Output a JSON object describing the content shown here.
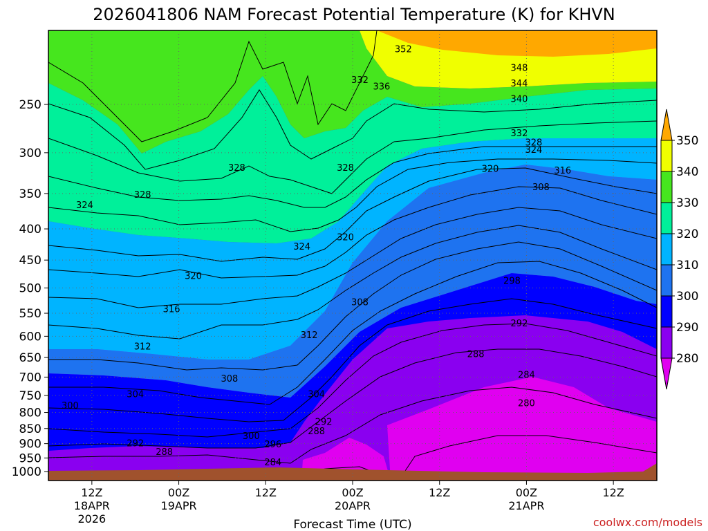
{
  "chart_data": {
    "type": "contour",
    "title": "2026041806 NAM Forecast Potential Temperature (K) for KHVN",
    "xlabel": "Forecast Time (UTC)",
    "ylabel": "",
    "watermark": "coolwx.com/models",
    "y_scale": "log-pressure",
    "y_ticks": [
      250,
      300,
      350,
      400,
      450,
      500,
      550,
      600,
      650,
      700,
      750,
      800,
      850,
      900,
      950,
      1000
    ],
    "ylim_hpa": [
      1000,
      200
    ],
    "x_range_hours": [
      0,
      84
    ],
    "x_ticks": [
      {
        "hour": 6,
        "label": "12Z",
        "line2": "18APR",
        "line3": "2026"
      },
      {
        "hour": 18,
        "label": "00Z",
        "line2": "19APR",
        "line3": ""
      },
      {
        "hour": 30,
        "label": "12Z",
        "line2": "",
        "line3": ""
      },
      {
        "hour": 42,
        "label": "00Z",
        "line2": "20APR",
        "line3": ""
      },
      {
        "hour": 54,
        "label": "12Z",
        "line2": "",
        "line3": ""
      },
      {
        "hour": 66,
        "label": "00Z",
        "line2": "21APR",
        "line3": ""
      },
      {
        "hour": 78,
        "label": "12Z",
        "line2": "",
        "line3": ""
      }
    ],
    "grid": true,
    "terrain_color": "#a0522d",
    "colorbar": {
      "ticks": [
        280,
        290,
        300,
        310,
        320,
        330,
        340,
        350
      ],
      "bands": [
        {
          "from": 280,
          "to": 290,
          "color": "#8a00f0"
        },
        {
          "from": 290,
          "to": 300,
          "color": "#0000ff"
        },
        {
          "from": 300,
          "to": 310,
          "color": "#1e73f0"
        },
        {
          "from": 310,
          "to": 320,
          "color": "#00b4ff"
        },
        {
          "from": 320,
          "to": 330,
          "color": "#00f09a"
        },
        {
          "from": 330,
          "to": 340,
          "color": "#46e61e"
        },
        {
          "from": 340,
          "to": 350,
          "color": "#f0ff00"
        }
      ],
      "below_color": "#e000f0",
      "above_color": "#ffa800"
    },
    "contour_interval_K": 2,
    "contour_labels": [
      {
        "value": "352",
        "hour": 49,
        "p": 203
      },
      {
        "value": "348",
        "hour": 65,
        "p": 218
      },
      {
        "value": "344",
        "hour": 65,
        "p": 231
      },
      {
        "value": "340",
        "hour": 65,
        "p": 245
      },
      {
        "value": "336",
        "hour": 46,
        "p": 234
      },
      {
        "value": "332",
        "hour": 43,
        "p": 228
      },
      {
        "value": "332",
        "hour": 65,
        "p": 279
      },
      {
        "value": "328",
        "hour": 67,
        "p": 289
      },
      {
        "value": "324",
        "hour": 67,
        "p": 297
      },
      {
        "value": "320",
        "hour": 61,
        "p": 319
      },
      {
        "value": "316",
        "hour": 71,
        "p": 321
      },
      {
        "value": "308",
        "hour": 68,
        "p": 342
      },
      {
        "value": "328",
        "hour": 26,
        "p": 318
      },
      {
        "value": "328",
        "hour": 41,
        "p": 318
      },
      {
        "value": "328",
        "hour": 13,
        "p": 352
      },
      {
        "value": "324",
        "hour": 5,
        "p": 366
      },
      {
        "value": "324",
        "hour": 35,
        "p": 428
      },
      {
        "value": "320",
        "hour": 41,
        "p": 413
      },
      {
        "value": "320",
        "hour": 20,
        "p": 478
      },
      {
        "value": "316",
        "hour": 17,
        "p": 542
      },
      {
        "value": "312",
        "hour": 13,
        "p": 624
      },
      {
        "value": "312",
        "hour": 36,
        "p": 598
      },
      {
        "value": "308",
        "hour": 43,
        "p": 528
      },
      {
        "value": "308",
        "hour": 25,
        "p": 705
      },
      {
        "value": "304",
        "hour": 12,
        "p": 747
      },
      {
        "value": "304",
        "hour": 37,
        "p": 747
      },
      {
        "value": "300",
        "hour": 3,
        "p": 780
      },
      {
        "value": "298",
        "hour": 64,
        "p": 487
      },
      {
        "value": "292",
        "hour": 65,
        "p": 572
      },
      {
        "value": "288",
        "hour": 59,
        "p": 642
      },
      {
        "value": "284",
        "hour": 66,
        "p": 695
      },
      {
        "value": "280",
        "hour": 66,
        "p": 773
      },
      {
        "value": "292",
        "hour": 38,
        "p": 830
      },
      {
        "value": "288",
        "hour": 37,
        "p": 860
      },
      {
        "value": "292",
        "hour": 12,
        "p": 900
      },
      {
        "value": "288",
        "hour": 16,
        "p": 930
      },
      {
        "value": "300",
        "hour": 28,
        "p": 875
      },
      {
        "value": "296",
        "hour": 31,
        "p": 903
      },
      {
        "value": "284",
        "hour": 31,
        "p": 967
      }
    ]
  }
}
